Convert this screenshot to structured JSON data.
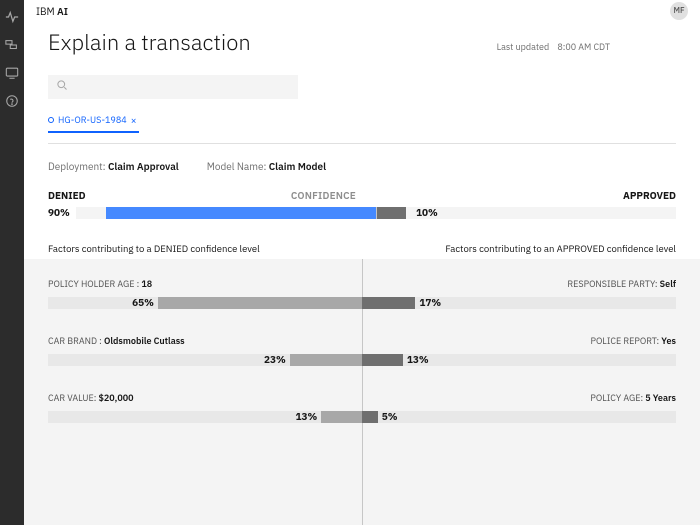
{
  "brand": {
    "prefix": "IBM",
    "suffix": "AI"
  },
  "avatar": {
    "initials": "MF"
  },
  "page": {
    "title": "Explain a transaction"
  },
  "last_updated": {
    "label": "Last updated",
    "time": "8:00 AM CDT"
  },
  "search": {
    "placeholder": ""
  },
  "chip": {
    "id": "HG-OR-US-1984",
    "close_glyph": "×"
  },
  "meta": {
    "deployment_label": "Deployment:",
    "deployment_value": "Claim Approval",
    "model_label": "Model Name:",
    "model_value": "Claim Model"
  },
  "outcome": {
    "left_label": "DENIED",
    "mid_label": "CONFIDENCE",
    "right_label": "APPROVED",
    "left_pct_text": "90%",
    "right_pct_text": "10%",
    "left_pct": 90,
    "right_pct": 10,
    "left_color": "#4589ff",
    "right_color": "#6f6f6f",
    "track_color": "#f4f4f4"
  },
  "factors_head": {
    "left": "Factors contributing to a DENIED confidence level",
    "right": "Factors contributing to an APPROVED confidence level"
  },
  "factor_colors": {
    "neg": "#a8a8a8",
    "pos": "#6f6f6f",
    "track": "#e8e8e8"
  },
  "factors": [
    {
      "left_label": "POLICY HOLDER AGE :",
      "left_value": "18",
      "right_label": "RESPONSIBLE PARTY:",
      "right_value": "Self",
      "neg_pct": 65,
      "neg_text": "65%",
      "pos_pct": 17,
      "pos_text": "17%"
    },
    {
      "left_label": "CAR BRAND :",
      "left_value": "Oldsmobile Cutlass",
      "right_label": "POLICE REPORT:",
      "right_value": "Yes",
      "neg_pct": 23,
      "neg_text": "23%",
      "pos_pct": 13,
      "pos_text": "13%"
    },
    {
      "left_label": "CAR VALUE:",
      "left_value": "$20,000",
      "right_label": "POLICY AGE:",
      "right_value": "5 Years",
      "neg_pct": 13,
      "neg_text": "13%",
      "pos_pct": 5,
      "pos_text": "5%"
    }
  ]
}
